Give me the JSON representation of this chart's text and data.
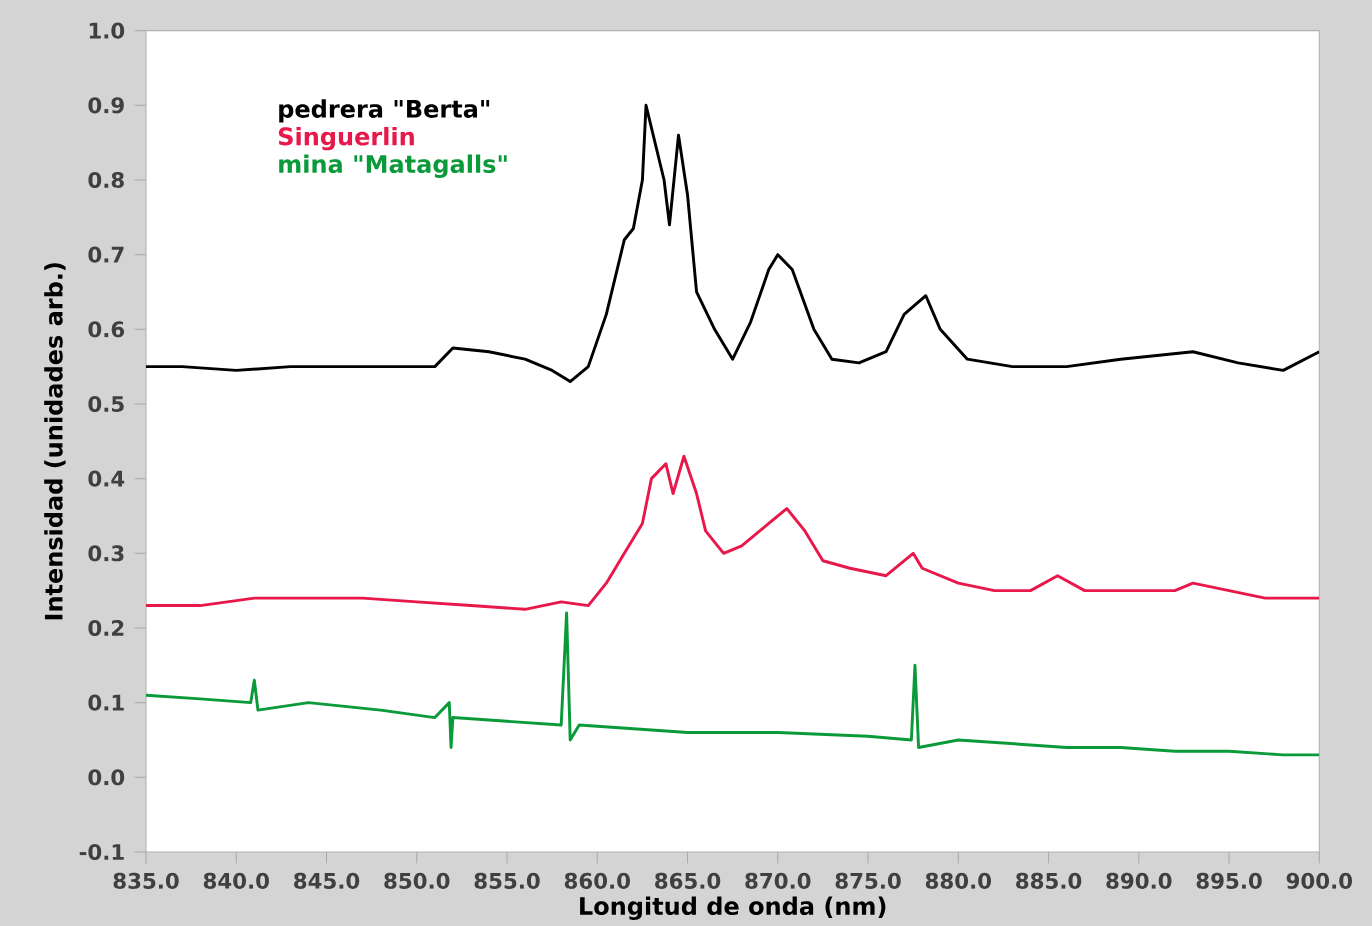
{
  "chart_data": {
    "type": "line",
    "xlabel": "Longitud de onda (nm)",
    "ylabel": "Intensidad (unidades arb.)",
    "xlim": [
      835,
      900
    ],
    "ylim": [
      -0.1,
      1.0
    ],
    "xticks": [
      {
        "value": 835,
        "label": "835.0"
      },
      {
        "value": 840,
        "label": "840.0"
      },
      {
        "value": 845,
        "label": "845.0"
      },
      {
        "value": 850,
        "label": "850.0"
      },
      {
        "value": 855,
        "label": "855.0"
      },
      {
        "value": 860,
        "label": "860.0"
      },
      {
        "value": 865,
        "label": "865.0"
      },
      {
        "value": 870,
        "label": "870.0"
      },
      {
        "value": 875,
        "label": "875.0"
      },
      {
        "value": 880,
        "label": "880.0"
      },
      {
        "value": 885,
        "label": "885.0"
      },
      {
        "value": 890,
        "label": "890.0"
      },
      {
        "value": 895,
        "label": "895.0"
      },
      {
        "value": 900,
        "label": "900.0"
      }
    ],
    "yticks": [
      {
        "value": -0.1,
        "label": "-0.1"
      },
      {
        "value": 0,
        "label": "0.0"
      },
      {
        "value": 0.1,
        "label": "0.1"
      },
      {
        "value": 0.2,
        "label": "0.2"
      },
      {
        "value": 0.3,
        "label": "0.3"
      },
      {
        "value": 0.4,
        "label": "0.4"
      },
      {
        "value": 0.5,
        "label": "0.5"
      },
      {
        "value": 0.6,
        "label": "0.6"
      },
      {
        "value": 0.7,
        "label": "0.7"
      },
      {
        "value": 0.8,
        "label": "0.8"
      },
      {
        "value": 0.9,
        "label": "0.9"
      },
      {
        "value": 1.0,
        "label": "1.0"
      }
    ],
    "legend": "top left",
    "series": [
      {
        "name": "pedrera \"Berta\"",
        "color": "#000000",
        "x": [
          835,
          837,
          840,
          843,
          846,
          849,
          851,
          852,
          854,
          856,
          857.5,
          858.5,
          859.5,
          860.5,
          861.5,
          862,
          862.5,
          862.7,
          863.7,
          864,
          864.5,
          865,
          865.5,
          866.5,
          867.5,
          868.5,
          869.5,
          870,
          870.8,
          872,
          873,
          874.5,
          876,
          877,
          878.2,
          879,
          880.5,
          883,
          886,
          889,
          891,
          893,
          895.5,
          898,
          900
        ],
        "values": [
          0.55,
          0.55,
          0.545,
          0.55,
          0.55,
          0.55,
          0.55,
          0.575,
          0.57,
          0.56,
          0.545,
          0.53,
          0.55,
          0.62,
          0.72,
          0.735,
          0.8,
          0.9,
          0.8,
          0.74,
          0.86,
          0.78,
          0.65,
          0.6,
          0.56,
          0.61,
          0.68,
          0.7,
          0.68,
          0.6,
          0.56,
          0.555,
          0.57,
          0.62,
          0.645,
          0.6,
          0.56,
          0.55,
          0.55,
          0.56,
          0.565,
          0.57,
          0.555,
          0.545,
          0.57
        ]
      },
      {
        "name": "Singuerlin",
        "color": "#e8194a",
        "x": [
          835,
          838,
          841,
          844,
          847,
          850,
          853,
          856,
          858,
          859.5,
          860.5,
          861.5,
          862.5,
          863,
          863.8,
          864.2,
          864.8,
          865.5,
          866,
          867,
          868,
          869.5,
          870.5,
          871.5,
          872.5,
          874,
          876,
          877.5,
          878,
          880,
          882,
          884,
          885.5,
          887,
          890,
          892,
          893,
          895,
          897,
          900
        ],
        "values": [
          0.23,
          0.23,
          0.24,
          0.24,
          0.24,
          0.235,
          0.23,
          0.225,
          0.235,
          0.23,
          0.26,
          0.3,
          0.34,
          0.4,
          0.42,
          0.38,
          0.43,
          0.38,
          0.33,
          0.3,
          0.31,
          0.34,
          0.36,
          0.33,
          0.29,
          0.28,
          0.27,
          0.3,
          0.28,
          0.26,
          0.25,
          0.25,
          0.27,
          0.25,
          0.25,
          0.25,
          0.26,
          0.25,
          0.24,
          0.24
        ]
      },
      {
        "name": "mina \"Matagalls\"",
        "color": "#0a9a3a",
        "x": [
          835,
          838,
          840.8,
          841,
          841.2,
          844,
          848,
          851,
          851.8,
          851.9,
          852,
          855,
          858,
          858.3,
          858.5,
          859,
          862,
          865,
          870,
          875,
          877.4,
          877.6,
          877.8,
          880,
          883,
          886,
          889,
          892,
          895,
          898,
          900
        ],
        "values": [
          0.11,
          0.105,
          0.1,
          0.13,
          0.09,
          0.1,
          0.09,
          0.08,
          0.1,
          0.04,
          0.08,
          0.075,
          0.07,
          0.22,
          0.05,
          0.07,
          0.065,
          0.06,
          0.06,
          0.055,
          0.05,
          0.15,
          0.04,
          0.05,
          0.045,
          0.04,
          0.04,
          0.035,
          0.035,
          0.03,
          0.03
        ]
      }
    ]
  }
}
